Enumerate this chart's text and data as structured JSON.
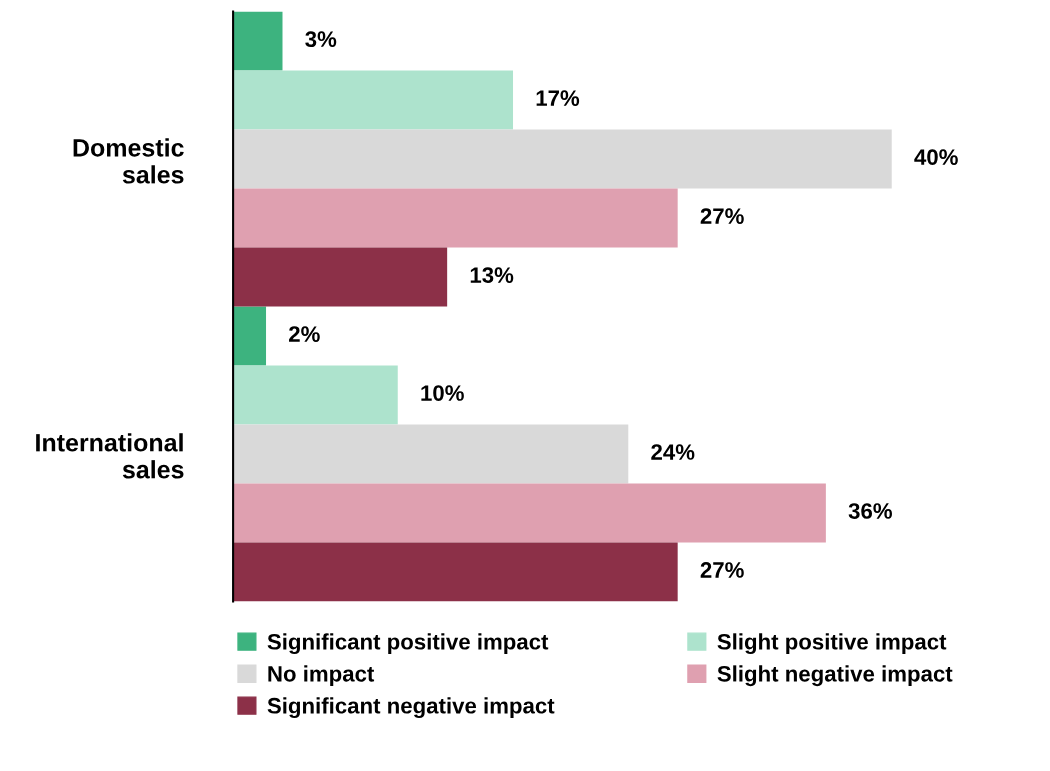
{
  "chart_data": {
    "type": "bar",
    "orientation": "horizontal",
    "categories": [
      "Domestic\nsales",
      "International\nsales"
    ],
    "series": [
      {
        "name": "Significant positive impact",
        "color": "#3db37f",
        "values": [
          3,
          2
        ],
        "value_labels": [
          "3%",
          "2%"
        ]
      },
      {
        "name": "Slight positive impact",
        "color": "#ade3cd",
        "values": [
          17,
          10
        ],
        "value_labels": [
          "17%",
          "10%"
        ]
      },
      {
        "name": "No impact",
        "color": "#d9d9d9",
        "values": [
          40,
          24
        ],
        "value_labels": [
          "40%",
          "24%"
        ]
      },
      {
        "name": "Slight negative impact",
        "color": "#dfa0b0",
        "values": [
          27,
          36
        ],
        "value_labels": [
          "27%",
          "36%"
        ]
      },
      {
        "name": "Significant negative impact",
        "color": "#8c3048",
        "values": [
          13,
          27
        ],
        "value_labels": [
          "13%",
          "27%"
        ]
      }
    ],
    "legend": "bottom",
    "tick_labels": "y"
  }
}
